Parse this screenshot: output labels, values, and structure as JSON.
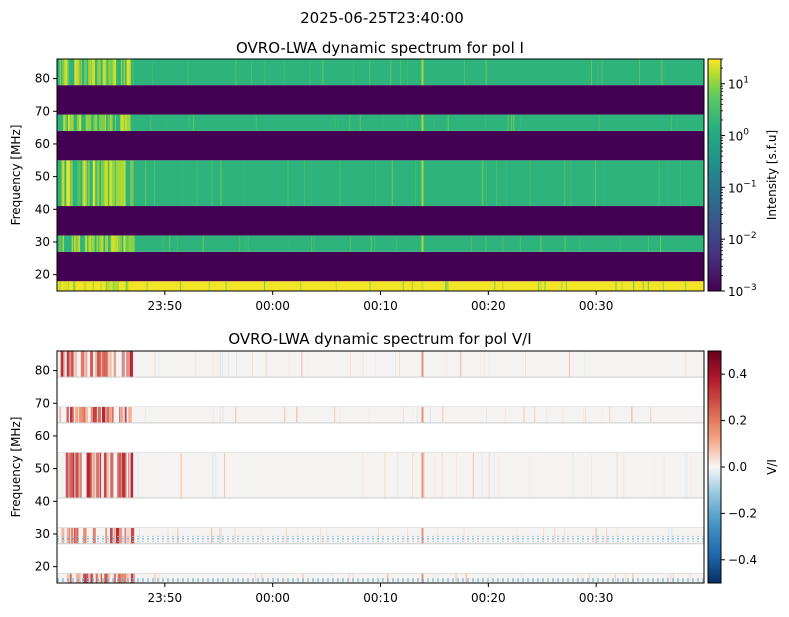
{
  "figure": {
    "suptitle": "2025-06-25T23:40:00"
  },
  "chart_data": [
    {
      "type": "heatmap",
      "title": "OVRO-LWA dynamic spectrum for pol I",
      "xlabel": "",
      "ylabel": "Frequency [MHz]",
      "x_tick_labels": [
        "23:50",
        "00:00",
        "00:10",
        "00:20",
        "00:30"
      ],
      "x_tick_times_min": [
        10,
        20,
        30,
        40,
        50
      ],
      "x_range_min": [
        0,
        60
      ],
      "y_ticks": [
        20,
        30,
        40,
        50,
        60,
        70,
        80
      ],
      "ylim": [
        15,
        86
      ],
      "colorbar": {
        "label": "Intensity [s.f.u]",
        "scale": "log",
        "ticks": [
          "10^1",
          "10^0",
          "10^-1",
          "10^-2",
          "10^-3"
        ],
        "range": [
          0.001,
          30
        ],
        "colormap": "viridis"
      },
      "bands": [
        {
          "from": 15,
          "to": 18,
          "level": "high"
        },
        {
          "from": 18,
          "to": 27,
          "level": "none"
        },
        {
          "from": 27,
          "to": 32,
          "level": "mid"
        },
        {
          "from": 32,
          "to": 41,
          "level": "none"
        },
        {
          "from": 41,
          "to": 55,
          "level": "mid"
        },
        {
          "from": 55,
          "to": 64,
          "level": "none"
        },
        {
          "from": 64,
          "to": 69,
          "level": "mid"
        },
        {
          "from": 69,
          "to": 78,
          "level": "none"
        },
        {
          "from": 78,
          "to": 86,
          "level": "mid"
        }
      ]
    },
    {
      "type": "heatmap",
      "title": "OVRO-LWA dynamic spectrum for pol V/I",
      "xlabel": "",
      "ylabel": "Frequency [MHz]",
      "x_tick_labels": [
        "23:50",
        "00:00",
        "00:10",
        "00:20",
        "00:30"
      ],
      "x_tick_times_min": [
        10,
        20,
        30,
        40,
        50
      ],
      "x_range_min": [
        0,
        60
      ],
      "y_ticks": [
        20,
        30,
        40,
        50,
        60,
        70,
        80
      ],
      "ylim": [
        15,
        86
      ],
      "colorbar": {
        "label": "V/I",
        "scale": "linear",
        "ticks": [
          "0.4",
          "0.2",
          "0.0",
          "−0.2",
          "−0.4"
        ],
        "range": [
          -0.5,
          0.5
        ],
        "colormap": "RdBu_r"
      },
      "bands": [
        {
          "from": 15,
          "to": 18,
          "level": "data"
        },
        {
          "from": 18,
          "to": 27,
          "level": "none"
        },
        {
          "from": 27,
          "to": 32,
          "level": "data"
        },
        {
          "from": 32,
          "to": 41,
          "level": "none"
        },
        {
          "from": 41,
          "to": 55,
          "level": "data"
        },
        {
          "from": 55,
          "to": 64,
          "level": "none"
        },
        {
          "from": 64,
          "to": 69,
          "level": "data"
        },
        {
          "from": 69,
          "to": 78,
          "level": "none"
        },
        {
          "from": 78,
          "to": 86,
          "level": "data"
        }
      ]
    }
  ]
}
